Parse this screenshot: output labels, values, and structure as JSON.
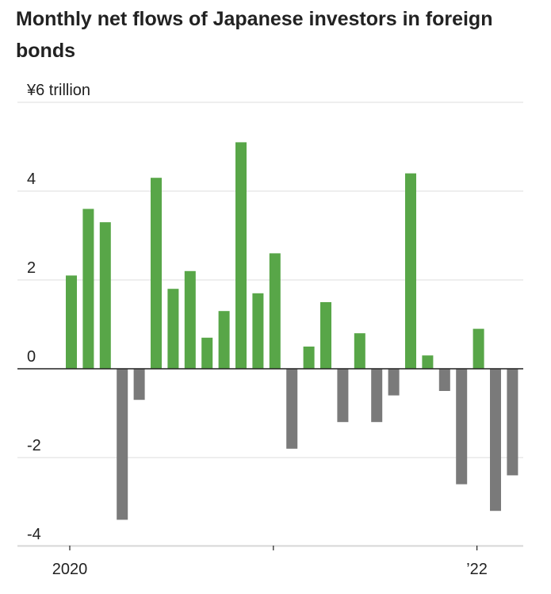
{
  "chart_data": {
    "type": "bar",
    "title": "Monthly net flows of Japanese investors in foreign bonds",
    "unit_label": "¥6 trillion",
    "ylim": [
      -4.2,
      6
    ],
    "yticks": [
      {
        "value": 6,
        "label": "¥6 trillion"
      },
      {
        "value": 4,
        "label": "4"
      },
      {
        "value": 2,
        "label": "2"
      },
      {
        "value": 0,
        "label": "0"
      },
      {
        "value": -2,
        "label": "-2"
      },
      {
        "value": -4,
        "label": "-4"
      }
    ],
    "xticks": [
      {
        "index": 0,
        "label": "2020"
      },
      {
        "index": 12,
        "label": ""
      },
      {
        "index": 24,
        "label": "’22"
      }
    ],
    "grid": true,
    "colors": {
      "positive": "#58a648",
      "negative": "#7a7a7a"
    },
    "categories": [
      "2020-01",
      "2020-02",
      "2020-03",
      "2020-04",
      "2020-05",
      "2020-06",
      "2020-07",
      "2020-08",
      "2020-09",
      "2020-10",
      "2020-11",
      "2020-12",
      "2021-01",
      "2021-02",
      "2021-03",
      "2021-04",
      "2021-05",
      "2021-06",
      "2021-07",
      "2021-08",
      "2021-09",
      "2021-10",
      "2021-11",
      "2021-12",
      "2022-01",
      "2022-02",
      "2022-03"
    ],
    "values": [
      2.1,
      3.6,
      3.3,
      -3.4,
      -0.7,
      4.3,
      1.8,
      2.2,
      0.7,
      1.3,
      5.1,
      1.7,
      2.6,
      -1.8,
      0.5,
      1.5,
      -1.2,
      0.8,
      -1.2,
      -0.6,
      4.4,
      0.3,
      -0.5,
      -2.6,
      0.9,
      -3.2,
      -2.4
    ]
  }
}
